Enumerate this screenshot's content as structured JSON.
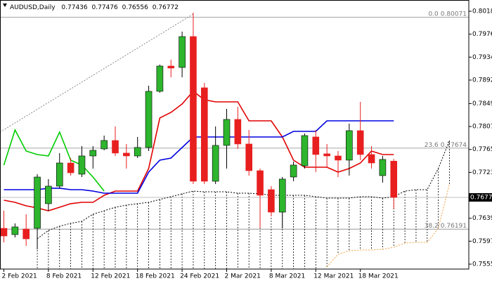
{
  "chart_data": {
    "type": "candlestick",
    "title": "AUDUSD,Daily",
    "categories": [
      "2 Feb 2021",
      null,
      null,
      null,
      "8 Feb 2021",
      null,
      null,
      null,
      "12 Feb 2021",
      null,
      null,
      null,
      "18 Feb 2021",
      null,
      null,
      null,
      "24 Feb 2021",
      null,
      null,
      null,
      "2 Mar 2021",
      null,
      null,
      null,
      "8 Mar 2021",
      null,
      null,
      null,
      "12 Mar 2021",
      null,
      null,
      null,
      "18 Mar 2021",
      null,
      null,
      null,
      null,
      null,
      null,
      null,
      null
    ],
    "open": [
      0.76206,
      0.76091,
      0.76193,
      0.76206,
      0.76657,
      0.76978,
      0.77402,
      0.77197,
      0.77531,
      0.7766,
      0.77814,
      0.77583,
      0.77531,
      0.77686,
      0.78714,
      0.79177,
      0.79151,
      0.79717,
      0.78779,
      0.77068,
      0.77724,
      0.782,
      0.7775,
      0.77261,
      0.76914,
      0.76502,
      0.77145,
      0.77351,
      0.77879,
      0.7757,
      0.77531,
      0.77454,
      0.77994,
      0.77557,
      0.77171,
      0.77436,
      null,
      null,
      null,
      null,
      null
    ],
    "high": [
      0.76527,
      0.76296,
      0.76463,
      0.77197,
      0.77107,
      0.77583,
      0.77493,
      0.77711,
      0.77711,
      0.77904,
      0.78071,
      0.7775,
      0.77879,
      0.78817,
      0.79203,
      0.79293,
      0.79807,
      0.80155,
      0.78869,
      0.78071,
      0.78393,
      0.78431,
      0.78007,
      0.773,
      0.76978,
      0.77145,
      0.77428,
      0.77943,
      0.78007,
      0.7775,
      0.77621,
      0.78123,
      0.78521,
      0.77711,
      0.77531,
      0.77476,
      null,
      null,
      null,
      null,
      null
    ],
    "low": [
      0.75949,
      0.76039,
      0.75885,
      0.75821,
      0.76527,
      0.7694,
      0.77171,
      0.77145,
      0.773,
      0.77634,
      0.77531,
      0.773,
      0.77493,
      0.77621,
      0.78689,
      0.78971,
      0.78971,
      0.77017,
      0.77017,
      0.77017,
      0.773,
      0.7766,
      0.77171,
      0.76206,
      0.76425,
      0.76206,
      0.77068,
      0.773,
      0.77235,
      0.77325,
      0.77145,
      0.77171,
      0.77454,
      0.773,
      0.77043,
      0.76556,
      null,
      null,
      null,
      null,
      null
    ],
    "close": [
      0.76065,
      0.76232,
      0.76013,
      0.77145,
      0.76978,
      0.77402,
      0.77222,
      0.77531,
      0.77634,
      0.77814,
      0.77583,
      0.77531,
      0.77686,
      0.78714,
      0.79177,
      0.79139,
      0.79717,
      0.77068,
      0.77068,
      0.77724,
      0.782,
      0.7775,
      0.77261,
      0.76811,
      0.76502,
      0.77107,
      0.77364,
      0.77904,
      0.77557,
      0.77531,
      0.77454,
      0.77994,
      0.77557,
      0.77402,
      0.77467,
      0.76772,
      null,
      null,
      null,
      null,
      null
    ],
    "up_color": "#2db52d",
    "down_color": "#e81f1f",
    "series": [
      {
        "color": "#e00000",
        "style": "solid",
        "values": [
          0.76721,
          0.76682,
          0.76618,
          0.76579,
          0.76528,
          0.76592,
          0.76657,
          0.76682,
          0.76682,
          0.76811,
          0.76888,
          0.76888,
          0.76888,
          0.773,
          0.78226,
          0.78328,
          0.78483,
          0.78714,
          0.7856,
          0.78521,
          0.78521,
          0.78521,
          0.78174,
          0.78174,
          0.78174,
          0.77878,
          0.77454,
          0.77325,
          0.77325,
          0.77325,
          0.77235,
          0.773,
          0.77402,
          0.77621,
          0.77557,
          0.77557,
          null,
          null,
          null,
          null,
          null
        ]
      },
      {
        "color": "#0000e0",
        "style": "solid",
        "values": [
          0.76914,
          0.76914,
          0.76914,
          0.76914,
          0.7694,
          0.7694,
          0.76914,
          0.76914,
          0.76888,
          0.76849,
          0.76849,
          0.76849,
          0.76849,
          0.77235,
          0.77454,
          0.77492,
          0.77685,
          0.77878,
          0.77878,
          0.77878,
          0.77878,
          0.77878,
          0.77878,
          0.77878,
          0.77878,
          0.77878,
          0.77981,
          0.77981,
          0.77981,
          0.78174,
          0.78174,
          0.78174,
          0.78174,
          0.78174,
          0.78174,
          0.78174,
          null,
          null,
          null,
          null,
          null
        ]
      },
      {
        "color": "#00cc00",
        "style": "solid",
        "values": [
          0.77364,
          0.78007,
          0.77621,
          0.77557,
          0.77531,
          0.77968,
          0.77454,
          0.77364,
          0.77145,
          0.76888,
          null,
          null,
          null,
          null,
          null,
          null,
          null,
          null,
          null,
          null,
          null,
          null,
          null,
          null,
          null,
          null,
          null,
          null,
          null,
          null,
          null,
          null,
          null,
          null,
          null,
          null,
          null,
          null,
          null,
          null,
          null
        ]
      },
      {
        "color": "#f0a040",
        "style": "dotted",
        "values": [
          null,
          null,
          null,
          null,
          null,
          null,
          null,
          null,
          null,
          null,
          null,
          null,
          null,
          null,
          null,
          null,
          null,
          null,
          null,
          null,
          null,
          null,
          null,
          null,
          null,
          null,
          null,
          null,
          null,
          0.75499,
          0.75731,
          0.75795,
          0.75808,
          0.75808,
          0.75821,
          0.75859,
          0.75936,
          0.75949,
          0.75949,
          0.76206,
          0.77017
        ]
      },
      {
        "color": "#000000",
        "style": "dotted",
        "values": [
          null,
          null,
          null,
          0.76014,
          0.76168,
          0.76245,
          0.76297,
          0.76335,
          0.76464,
          0.76528,
          0.76592,
          0.76631,
          0.76657,
          0.76682,
          0.76734,
          0.76785,
          0.76837,
          0.76888,
          0.76875,
          0.76875,
          0.76875,
          0.76849,
          0.76849,
          0.76837,
          0.76811,
          0.76811,
          0.76811,
          0.76811,
          0.76785,
          0.76759,
          0.76759,
          0.76759,
          0.76785,
          0.76785,
          0.76759,
          0.76785,
          0.76888,
          0.76914,
          0.76914,
          0.773,
          0.77814
        ]
      }
    ],
    "fib_levels": [
      {
        "level": "0.0",
        "value": 0.80071
      },
      {
        "level": "23.6",
        "value": 0.77674
      },
      {
        "level": "38.2",
        "value": 0.76191
      }
    ],
    "ylim": [
      0.7546,
      0.80386
    ],
    "yticks": [
      {
        "value": 0.8018,
        "label": "0.80180"
      },
      {
        "value": 0.7976,
        "label": "0.79760"
      },
      {
        "value": 0.7934,
        "label": "0.79340"
      },
      {
        "value": 0.7892,
        "label": "0.78920"
      },
      {
        "value": 0.7849,
        "label": "0.78490"
      },
      {
        "value": 0.7807,
        "label": "0.78070"
      },
      {
        "value": 0.7765,
        "label": "0.77650"
      },
      {
        "value": 0.7723,
        "label": "0.77230"
      },
      {
        "value": 0.7639,
        "label": "0.76390"
      },
      {
        "value": 0.7597,
        "label": "0.75970"
      },
      {
        "value": 0.7555,
        "label": "0.75550"
      }
    ]
  }
}
